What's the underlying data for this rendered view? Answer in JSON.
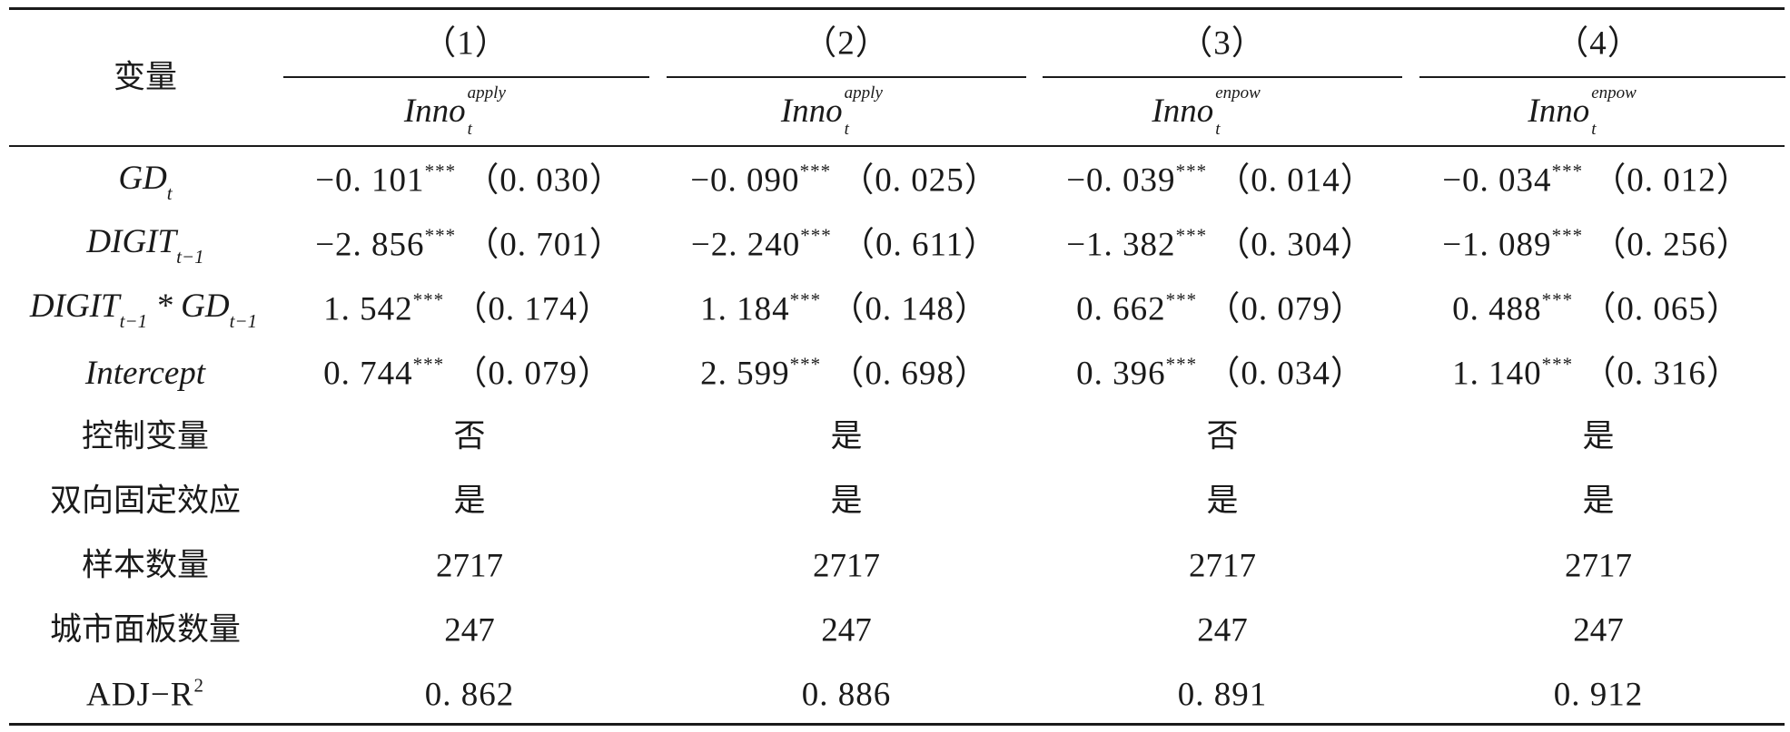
{
  "header": {
    "var_label": "变量",
    "columns": [
      {
        "num": "（1）",
        "dep_base": "Inno",
        "dep_super": "apply",
        "dep_sub": "t"
      },
      {
        "num": "（2）",
        "dep_base": "Inno",
        "dep_super": "apply",
        "dep_sub": "t"
      },
      {
        "num": "（3）",
        "dep_base": "Inno",
        "dep_super": "enpow",
        "dep_sub": "t"
      },
      {
        "num": "（4）",
        "dep_base": "Inno",
        "dep_super": "enpow",
        "dep_sub": "t"
      }
    ]
  },
  "rows": [
    {
      "label_base": "GD",
      "label_sub": "t",
      "label_rest": "",
      "label_rest_sub": "",
      "cells": [
        {
          "coef": "−0. 101",
          "stars": "***",
          "se": "（0. 030）"
        },
        {
          "coef": "−0. 090",
          "stars": "***",
          "se": "（0. 025）"
        },
        {
          "coef": "−0. 039",
          "stars": "***",
          "se": "（0. 014）"
        },
        {
          "coef": "−0. 034",
          "stars": "***",
          "se": "（0. 012）"
        }
      ]
    },
    {
      "label_base": "DIGIT",
      "label_sub": "t−1",
      "label_rest": "",
      "label_rest_sub": "",
      "cells": [
        {
          "coef": "−2. 856",
          "stars": "***",
          "se": "（0. 701）"
        },
        {
          "coef": "−2. 240",
          "stars": "***",
          "se": "（0. 611）"
        },
        {
          "coef": "−1. 382",
          "stars": "***",
          "se": "（0. 304）"
        },
        {
          "coef": "−1. 089",
          "stars": "***",
          "se": "（0. 256）"
        }
      ]
    },
    {
      "label_base": "DIGIT",
      "label_sub": "t−1",
      "label_rest": " * GD",
      "label_rest_sub": "t−1",
      "cells": [
        {
          "coef": "1. 542",
          "stars": "***",
          "se": "（0. 174）"
        },
        {
          "coef": "1. 184",
          "stars": "***",
          "se": "（0. 148）"
        },
        {
          "coef": "0. 662",
          "stars": "***",
          "se": "（0. 079）"
        },
        {
          "coef": "0. 488",
          "stars": "***",
          "se": "（0. 065）"
        }
      ]
    },
    {
      "label_base": "Intercept",
      "label_sub": "",
      "label_rest": "",
      "label_rest_sub": "",
      "cells": [
        {
          "coef": "0. 744",
          "stars": "***",
          "se": "（0. 079）"
        },
        {
          "coef": "2. 599",
          "stars": "***",
          "se": "（0. 698）"
        },
        {
          "coef": "0. 396",
          "stars": "***",
          "se": "（0. 034）"
        },
        {
          "coef": "1. 140",
          "stars": "***",
          "se": "（0. 316）"
        }
      ]
    }
  ],
  "plain_rows": [
    {
      "label": "控制变量",
      "values": [
        "否",
        "是",
        "否",
        "是"
      ]
    },
    {
      "label": "双向固定效应",
      "values": [
        "是",
        "是",
        "是",
        "是"
      ]
    },
    {
      "label": "样本数量",
      "values": [
        "2717",
        "2717",
        "2717",
        "2717"
      ]
    },
    {
      "label": "城市面板数量",
      "values": [
        "247",
        "247",
        "247",
        "247"
      ]
    },
    {
      "label": "ADJ−R",
      "label_sup": "2",
      "values": [
        "0. 862",
        "0. 886",
        "0. 891",
        "0. 912"
      ]
    }
  ]
}
